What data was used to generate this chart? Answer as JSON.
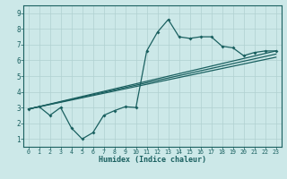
{
  "xlabel": "Humidex (Indice chaleur)",
  "bg_color": "#cce8e8",
  "line_color": "#1a6060",
  "grid_color": "#b0d0d0",
  "xlim": [
    -0.5,
    23.5
  ],
  "ylim": [
    0.5,
    9.5
  ],
  "xticks": [
    0,
    1,
    2,
    3,
    4,
    5,
    6,
    7,
    8,
    9,
    10,
    11,
    12,
    13,
    14,
    15,
    16,
    17,
    18,
    19,
    20,
    21,
    22,
    23
  ],
  "yticks": [
    1,
    2,
    3,
    4,
    5,
    6,
    7,
    8,
    9
  ],
  "line1_x": [
    0,
    1,
    2,
    3,
    4,
    5,
    6,
    7,
    8,
    9,
    10,
    11,
    12,
    13,
    14,
    15,
    16,
    17,
    18,
    19,
    20,
    21,
    22,
    23
  ],
  "line1_y": [
    2.9,
    3.05,
    2.5,
    3.0,
    1.7,
    1.0,
    1.4,
    2.5,
    2.8,
    3.05,
    3.0,
    6.6,
    7.8,
    8.6,
    7.5,
    7.4,
    7.5,
    7.5,
    6.9,
    6.8,
    6.3,
    6.5,
    6.6,
    6.6
  ],
  "line2_x": [
    0,
    23
  ],
  "line2_y": [
    2.9,
    6.6
  ],
  "line3_x": [
    0,
    23
  ],
  "line3_y": [
    2.9,
    6.4
  ],
  "line4_x": [
    0,
    23
  ],
  "line4_y": [
    2.9,
    6.2
  ]
}
